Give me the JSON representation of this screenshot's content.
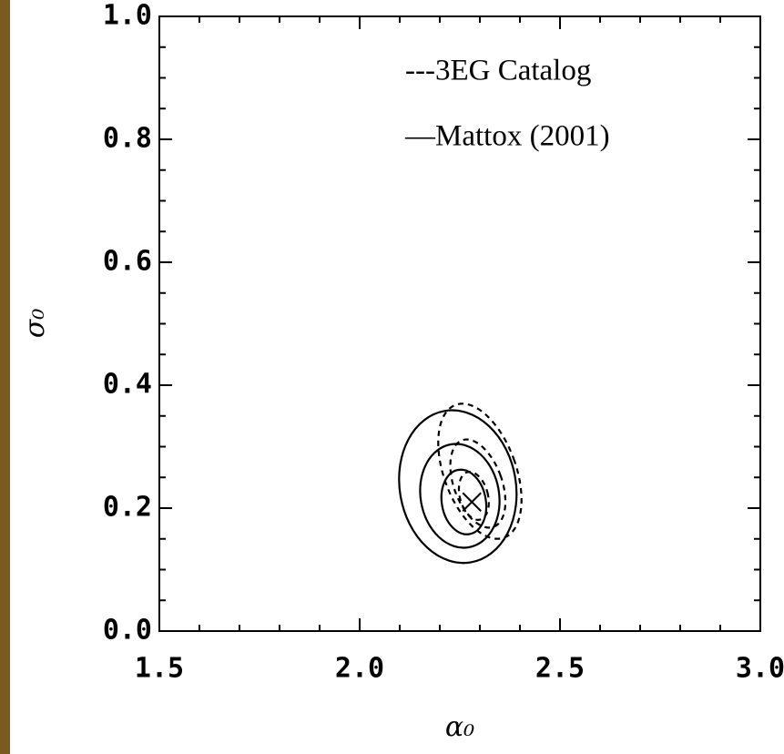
{
  "chart_data": {
    "type": "contour",
    "x_label": "α₀",
    "y_label": "σ₀",
    "xlim": [
      1.5,
      3.0
    ],
    "ylim": [
      0.0,
      1.0
    ],
    "xticks": [
      1.5,
      {
        "value": 2.0,
        "label": "2.0"
      },
      2.5,
      {
        "value": 3.0,
        "label": "3.0"
      }
    ],
    "yticks": [
      {
        "value": 0.0,
        "label": "0.0"
      },
      0.2,
      0.4,
      0.6,
      0.8,
      {
        "value": 1.0,
        "label": "1.0"
      }
    ],
    "xminor": [
      1.6,
      1.7,
      1.8,
      1.9,
      2.1,
      2.2,
      2.3,
      2.4,
      2.6,
      2.7,
      2.8,
      2.9
    ],
    "yminor": [
      0.05,
      0.1,
      0.15,
      0.25,
      0.3,
      0.35,
      0.45,
      0.5,
      0.55,
      0.65,
      0.7,
      0.75,
      0.85,
      0.9,
      0.95
    ],
    "series": [
      {
        "name": "---3EG Catalog",
        "style": "dashed",
        "color": "#000000",
        "contours": [
          {
            "cx": 2.3,
            "cy": 0.26,
            "rx": 0.09,
            "ry": 0.115,
            "angle": -20
          },
          {
            "cx": 2.295,
            "cy": 0.24,
            "rx": 0.06,
            "ry": 0.075,
            "angle": -20
          },
          {
            "cx": 2.285,
            "cy": 0.22,
            "rx": 0.035,
            "ry": 0.04,
            "angle": -15
          }
        ]
      },
      {
        "name": "—Mattox (2001)",
        "style": "solid",
        "color": "#000000",
        "contours": [
          {
            "cx": 2.245,
            "cy": 0.235,
            "rx": 0.145,
            "ry": 0.125,
            "angle": -10
          },
          {
            "cx": 2.25,
            "cy": 0.22,
            "rx": 0.098,
            "ry": 0.085,
            "angle": -10
          },
          {
            "cx": 2.26,
            "cy": 0.21,
            "rx": 0.055,
            "ry": 0.053,
            "angle": -10
          }
        ]
      }
    ],
    "best_fit": {
      "x": 2.28,
      "y": 0.21
    }
  }
}
